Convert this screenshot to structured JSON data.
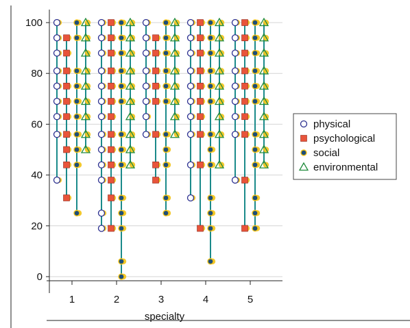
{
  "chart_data": {
    "type": "scatter",
    "title": "",
    "xlabel": "specialty",
    "ylabel": "",
    "x_categories": [
      "1",
      "2",
      "3",
      "4",
      "5"
    ],
    "ylim": [
      0,
      100
    ],
    "yticks": [
      0,
      20,
      40,
      60,
      80,
      100
    ],
    "grid": "horizontal",
    "legend_position": "right",
    "series": [
      {
        "name": "physical",
        "marker": "open-circle",
        "color": "#2b2f8f",
        "groups": [
          [
            38,
            56,
            63,
            69,
            75,
            81,
            88,
            94,
            100
          ],
          [
            19,
            25,
            38,
            44,
            50,
            56,
            63,
            69,
            75,
            81,
            88,
            94,
            100
          ],
          [
            56,
            63,
            69,
            75,
            81,
            88,
            94,
            100
          ],
          [
            31,
            44,
            56,
            63,
            69,
            75,
            81,
            88,
            94,
            100
          ],
          [
            38,
            56,
            63,
            69,
            75,
            81,
            88,
            94,
            100
          ]
        ]
      },
      {
        "name": "psychological",
        "marker": "square",
        "color": "#e8543b",
        "groups": [
          [
            31,
            44,
            50,
            56,
            63,
            69,
            75,
            81,
            88,
            94
          ],
          [
            19,
            31,
            38,
            44,
            50,
            56,
            63,
            69,
            75,
            81,
            88,
            94,
            100
          ],
          [
            38,
            44,
            56,
            69,
            75,
            81,
            88,
            94
          ],
          [
            19,
            44,
            56,
            63,
            69,
            75,
            81,
            88,
            94,
            100
          ],
          [
            19,
            38,
            56,
            63,
            69,
            75,
            81,
            88,
            94,
            100
          ]
        ]
      },
      {
        "name": "social",
        "marker": "filled-circle",
        "color": "#1d4e79",
        "groups": [
          [
            25,
            44,
            50,
            56,
            63,
            69,
            75,
            81,
            94,
            100
          ],
          [
            0,
            6,
            19,
            25,
            31,
            44,
            50,
            56,
            69,
            75,
            81,
            88,
            94,
            100
          ],
          [
            25,
            31,
            44,
            50,
            56,
            69,
            75,
            81,
            88,
            94,
            100
          ],
          [
            6,
            19,
            25,
            31,
            44,
            50,
            56,
            69,
            75,
            81,
            88,
            94,
            100
          ],
          [
            19,
            25,
            31,
            44,
            50,
            56,
            69,
            75,
            81,
            88,
            94,
            100
          ]
        ]
      },
      {
        "name": "environmental",
        "marker": "triangle",
        "color": "#1f8a3a",
        "groups": [
          [
            50,
            56,
            63,
            69,
            75,
            81,
            88,
            94,
            100
          ],
          [
            44,
            50,
            56,
            63,
            69,
            75,
            81,
            88,
            94,
            100
          ],
          [
            56,
            63,
            69,
            75,
            81,
            88,
            94,
            100
          ],
          [
            44,
            56,
            63,
            69,
            75,
            81,
            88,
            94,
            100
          ],
          [
            44,
            50,
            56,
            63,
            69,
            75,
            81,
            88,
            94,
            100
          ]
        ]
      }
    ]
  },
  "colors": {
    "stem": "#1a8a8a",
    "highlight": "#f2c318",
    "grid": "#d4d4d4"
  }
}
